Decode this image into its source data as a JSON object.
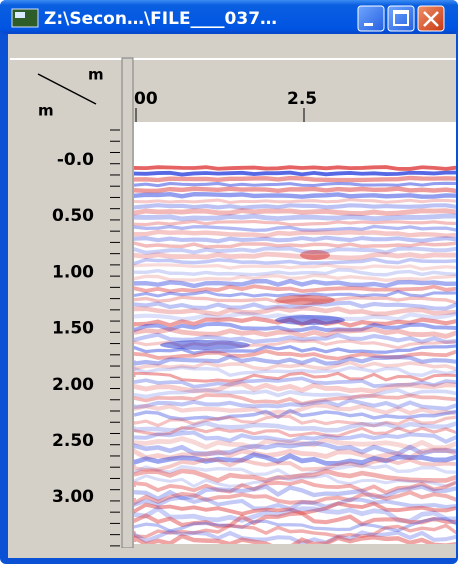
{
  "window": {
    "title": "Z:\\Secon…\\FILE____037…"
  },
  "axes": {
    "x_unit": "m",
    "y_unit": "m",
    "x_labels": [
      "00",
      "2.5"
    ],
    "y_labels": [
      "-0.0",
      "0.50",
      "1.00",
      "1.50",
      "2.00",
      "2.50",
      "3.00"
    ]
  }
}
